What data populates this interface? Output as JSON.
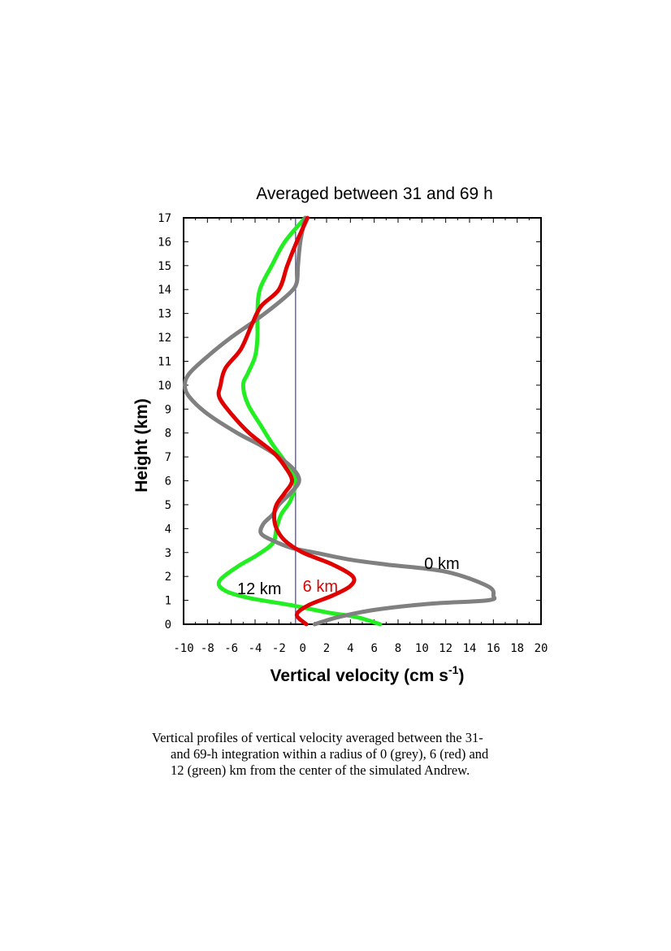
{
  "chart_data": {
    "type": "line",
    "title": "Averaged between 31 and 69 h",
    "xlabel": "Vertical velocity (cm s",
    "xlabel_sup": "-1",
    "xlabel_close": ")",
    "ylabel": "Height (km)",
    "xlim": [
      -10,
      20
    ],
    "ylim": [
      0,
      17
    ],
    "xticks": [
      -10,
      -8,
      -6,
      -4,
      -2,
      0,
      2,
      4,
      6,
      8,
      10,
      12,
      14,
      16,
      18,
      20
    ],
    "xtick_labels": [
      "-10",
      "-8",
      "-6",
      "-4",
      "-2",
      "0",
      "2",
      "4",
      "6",
      "8",
      "10",
      "12",
      "14",
      "16",
      "18",
      "20"
    ],
    "yticks": [
      0,
      1,
      2,
      3,
      4,
      5,
      6,
      7,
      8,
      9,
      10,
      11,
      12,
      13,
      14,
      15,
      16,
      17
    ],
    "ytick_labels": [
      "0",
      "1",
      "2",
      "3",
      "4",
      "5",
      "6",
      "7",
      "8",
      "9",
      "10",
      "11",
      "12",
      "13",
      "14",
      "15",
      "16",
      "17"
    ],
    "reference_line_x": -0.6,
    "series": [
      {
        "name": "0 km",
        "color": "#808080",
        "label_pos": [
          10.2,
          2.55
        ],
        "points": [
          [
            1.0,
            0
          ],
          [
            3.0,
            0.3
          ],
          [
            6.0,
            0.6
          ],
          [
            10.5,
            0.85
          ],
          [
            15.5,
            1.0
          ],
          [
            16.0,
            1.2
          ],
          [
            15.5,
            1.6
          ],
          [
            12.0,
            2.2
          ],
          [
            7.0,
            2.5
          ],
          [
            4.0,
            2.7
          ],
          [
            1.0,
            3.0
          ],
          [
            -1.0,
            3.2
          ],
          [
            -2.5,
            3.5
          ],
          [
            -3.5,
            3.8
          ],
          [
            -3.3,
            4.2
          ],
          [
            -2.5,
            4.6
          ],
          [
            -2.0,
            5.0
          ],
          [
            -1.0,
            5.5
          ],
          [
            -0.3,
            6.0
          ],
          [
            -0.8,
            6.5
          ],
          [
            -2.0,
            7.0
          ],
          [
            -3.6,
            7.5
          ],
          [
            -5.5,
            8.0
          ],
          [
            -8.0,
            8.8
          ],
          [
            -9.5,
            9.5
          ],
          [
            -9.9,
            10.0
          ],
          [
            -9.5,
            10.5
          ],
          [
            -8.0,
            11.2
          ],
          [
            -6.0,
            12.0
          ],
          [
            -4.0,
            12.7
          ],
          [
            -2.4,
            13.3
          ],
          [
            -1.0,
            13.9
          ],
          [
            -0.5,
            14.3
          ],
          [
            -0.4,
            15.0
          ],
          [
            -0.2,
            16.0
          ],
          [
            0.2,
            17.0
          ]
        ]
      },
      {
        "name": "6 km",
        "color": "#e00000",
        "label_pos": [
          0.0,
          1.6
        ],
        "points": [
          [
            0.3,
            0
          ],
          [
            -0.5,
            0.4
          ],
          [
            0.5,
            0.8
          ],
          [
            2.5,
            1.2
          ],
          [
            4.0,
            1.6
          ],
          [
            4.2,
            2.0
          ],
          [
            2.5,
            2.5
          ],
          [
            0.0,
            3.0
          ],
          [
            -1.5,
            3.5
          ],
          [
            -2.2,
            4.0
          ],
          [
            -2.4,
            4.5
          ],
          [
            -2.2,
            5.0
          ],
          [
            -1.5,
            5.5
          ],
          [
            -0.9,
            6.0
          ],
          [
            -1.5,
            6.6
          ],
          [
            -2.5,
            7.2
          ],
          [
            -4.5,
            8.0
          ],
          [
            -6.0,
            8.8
          ],
          [
            -7.0,
            9.5
          ],
          [
            -6.9,
            10.0
          ],
          [
            -6.5,
            10.7
          ],
          [
            -5.2,
            11.5
          ],
          [
            -4.3,
            12.5
          ],
          [
            -3.5,
            13.3
          ],
          [
            -2.0,
            14.0
          ],
          [
            -1.3,
            15.0
          ],
          [
            -0.5,
            16.0
          ],
          [
            0.4,
            17.0
          ]
        ]
      },
      {
        "name": "12 km",
        "color": "#22ee22",
        "label_pos": [
          -5.5,
          1.5
        ],
        "points": [
          [
            6.5,
            0
          ],
          [
            4.5,
            0.3
          ],
          [
            2.0,
            0.5
          ],
          [
            -1.0,
            0.8
          ],
          [
            -4.5,
            1.1
          ],
          [
            -6.5,
            1.4
          ],
          [
            -7.0,
            1.8
          ],
          [
            -5.5,
            2.4
          ],
          [
            -3.8,
            2.9
          ],
          [
            -2.5,
            3.4
          ],
          [
            -2.2,
            4.0
          ],
          [
            -1.8,
            4.6
          ],
          [
            -1.0,
            5.2
          ],
          [
            -0.6,
            6.0
          ],
          [
            -1.2,
            6.6
          ],
          [
            -2.5,
            7.5
          ],
          [
            -3.5,
            8.3
          ],
          [
            -4.6,
            9.2
          ],
          [
            -5.0,
            10.0
          ],
          [
            -4.6,
            10.5
          ],
          [
            -4.0,
            11.2
          ],
          [
            -3.8,
            12.0
          ],
          [
            -3.8,
            13.0
          ],
          [
            -3.6,
            14.0
          ],
          [
            -2.6,
            15.0
          ],
          [
            -1.5,
            16.0
          ],
          [
            0.2,
            17.0
          ]
        ]
      }
    ],
    "grid": false
  },
  "caption": {
    "line1": "Vertical profiles of vertical velocity averaged between the 31-",
    "line2": "and 69-h integration within a radius of 0 (grey), 6 (red) and",
    "line3": "12 (green) km from the center of the simulated Andrew."
  }
}
